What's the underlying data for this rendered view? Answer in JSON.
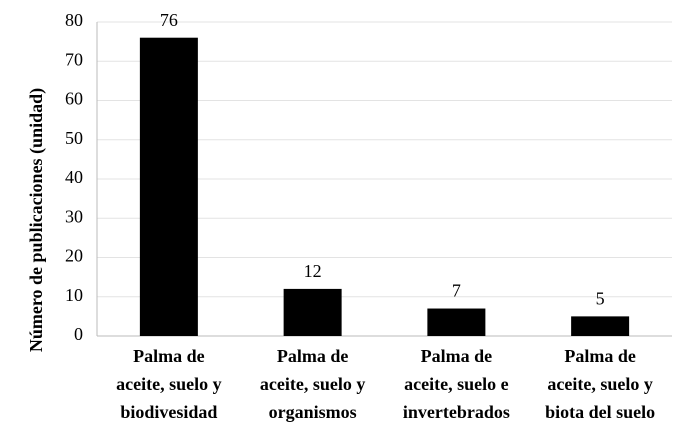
{
  "chart_data": {
    "type": "bar",
    "y_label": "Número de publicaciones (unidad)",
    "categories": [
      "Palma de\naceite, suelo y\nbiodivesidad",
      "Palma de\naceite, suelo y\norganismos",
      "Palma de\naceite, suelo e\ninvertebrados",
      "Palma de\naceite, suelo y\nbiota del suelo"
    ],
    "values": [
      76,
      12,
      7,
      5
    ],
    "color": "#000000",
    "ylim": [
      0,
      80
    ],
    "yticks": [
      0,
      10,
      20,
      30,
      40,
      50,
      60,
      70,
      80
    ],
    "grid": true
  }
}
